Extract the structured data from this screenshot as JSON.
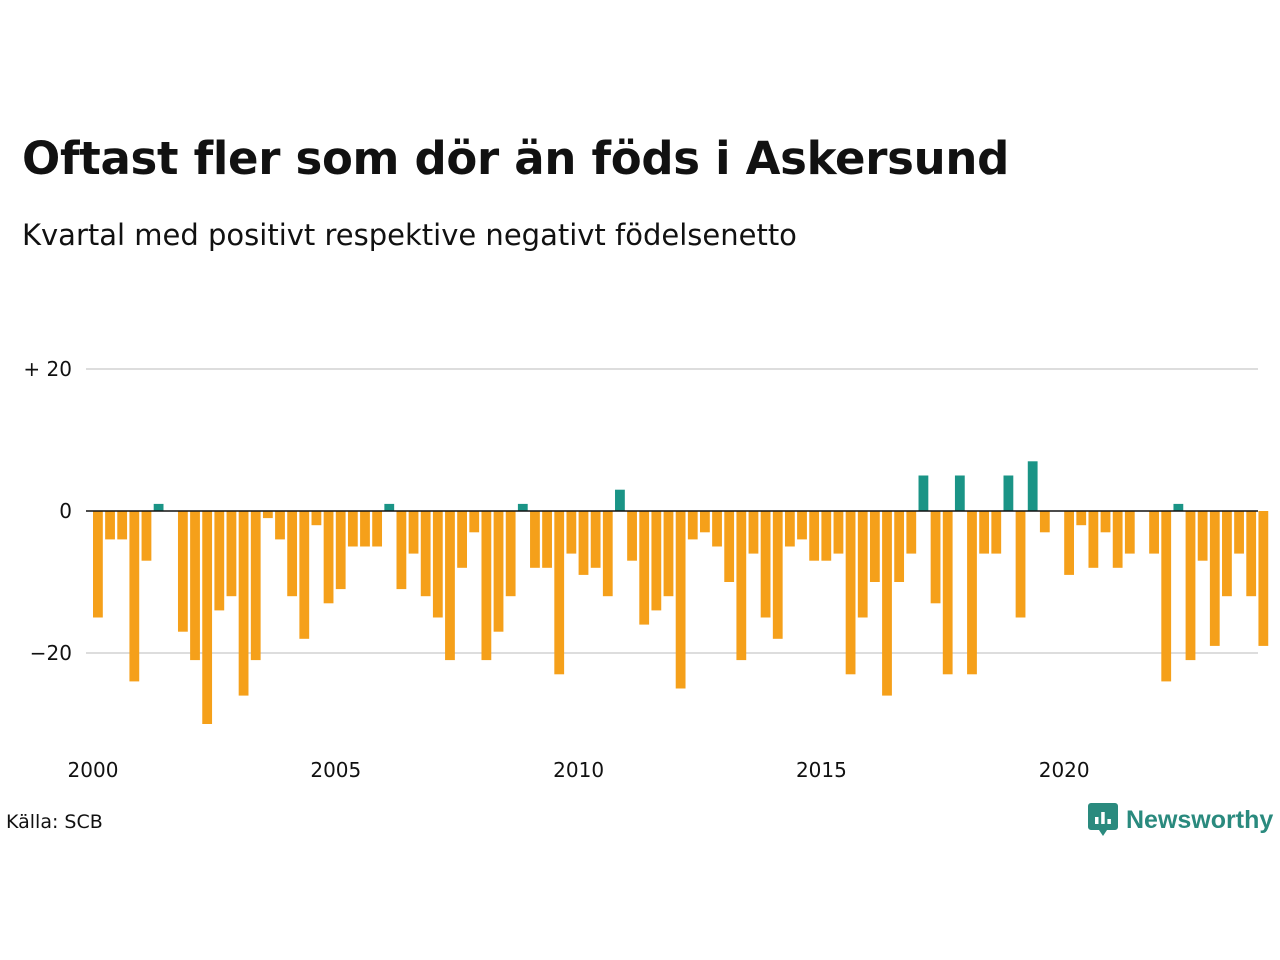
{
  "title": "Oftast fler som dör än föds i Askersund",
  "subtitle": "Kvartal med positivt respektive negativt födelsenetto",
  "source": "Källa: SCB",
  "brand": {
    "name": "Newsworthy",
    "icon": "newsworthy-logo-icon",
    "color": "#2a8a7e"
  },
  "colors": {
    "positive": "#1a9486",
    "negative": "#f5a01a",
    "grid": "#dddddd",
    "zero": "#111111"
  },
  "chart_data": {
    "type": "bar",
    "title": "Oftast fler som dör än föds i Askersund",
    "subtitle": "Kvartal med positivt respektive negativt födelsenetto",
    "xlabel": "",
    "ylabel": "",
    "x_start": 2000,
    "x_end": 2024,
    "ylim": [
      -30,
      20
    ],
    "yticks": [
      {
        "value": 20,
        "label": "+ 20"
      },
      {
        "value": 0,
        "label": "0"
      },
      {
        "value": -20,
        "label": "−20"
      }
    ],
    "xticks": [
      {
        "value": 2000,
        "label": "2000"
      },
      {
        "value": 2005,
        "label": "2005"
      },
      {
        "value": 2010,
        "label": "2010"
      },
      {
        "value": 2015,
        "label": "2015"
      },
      {
        "value": 2020,
        "label": "2020"
      }
    ],
    "grid": true,
    "legend": "none",
    "categories": [
      "2000 K1",
      "2000 K2",
      "2000 K3",
      "2000 K4",
      "2001 K1",
      "2001 K2",
      "2001 K3",
      "2001 K4",
      "2002 K1",
      "2002 K2",
      "2002 K3",
      "2002 K4",
      "2003 K1",
      "2003 K2",
      "2003 K3",
      "2003 K4",
      "2004 K1",
      "2004 K2",
      "2004 K3",
      "2004 K4",
      "2005 K1",
      "2005 K2",
      "2005 K3",
      "2005 K4",
      "2006 K1",
      "2006 K2",
      "2006 K3",
      "2006 K4",
      "2007 K1",
      "2007 K2",
      "2007 K3",
      "2007 K4",
      "2008 K1",
      "2008 K2",
      "2008 K3",
      "2008 K4",
      "2009 K1",
      "2009 K2",
      "2009 K3",
      "2009 K4",
      "2010 K1",
      "2010 K2",
      "2010 K3",
      "2010 K4",
      "2011 K1",
      "2011 K2",
      "2011 K3",
      "2011 K4",
      "2012 K1",
      "2012 K2",
      "2012 K3",
      "2012 K4",
      "2013 K1",
      "2013 K2",
      "2013 K3",
      "2013 K4",
      "2014 K1",
      "2014 K2",
      "2014 K3",
      "2014 K4",
      "2015 K1",
      "2015 K2",
      "2015 K3",
      "2015 K4",
      "2016 K1",
      "2016 K2",
      "2016 K3",
      "2016 K4",
      "2017 K1",
      "2017 K2",
      "2017 K3",
      "2017 K4",
      "2018 K1",
      "2018 K2",
      "2018 K3",
      "2018 K4",
      "2019 K1",
      "2019 K2",
      "2019 K3",
      "2019 K4",
      "2020 K1",
      "2020 K2",
      "2020 K3",
      "2020 K4",
      "2021 K1",
      "2021 K2",
      "2021 K3",
      "2021 K4",
      "2022 K1",
      "2022 K2",
      "2022 K3",
      "2022 K4",
      "2023 K1",
      "2023 K2",
      "2023 K3",
      "2023 K4",
      "2024 K1"
    ],
    "values": [
      -15,
      -4,
      -4,
      -24,
      -7,
      1,
      0,
      -17,
      -21,
      -30,
      -14,
      -12,
      -26,
      -21,
      -1,
      -4,
      -12,
      -18,
      -2,
      -13,
      -11,
      -5,
      -5,
      -5,
      1,
      -11,
      -6,
      -12,
      -15,
      -21,
      -8,
      -3,
      -21,
      -17,
      -12,
      1,
      -8,
      -8,
      -23,
      -6,
      -9,
      -8,
      -12,
      3,
      -7,
      -16,
      -14,
      -12,
      -25,
      -4,
      -3,
      -5,
      -10,
      -21,
      -6,
      -15,
      -18,
      -5,
      -4,
      -7,
      -7,
      -6,
      -23,
      -15,
      -10,
      -26,
      -10,
      -6,
      5,
      -13,
      -23,
      5,
      -23,
      -6,
      -6,
      5,
      -15,
      7,
      -3,
      0,
      -9,
      -2,
      -8,
      -3,
      -8,
      -6,
      0,
      -6,
      -24,
      1,
      -21,
      -7,
      -19,
      -12,
      -6,
      -12,
      -19
    ]
  }
}
